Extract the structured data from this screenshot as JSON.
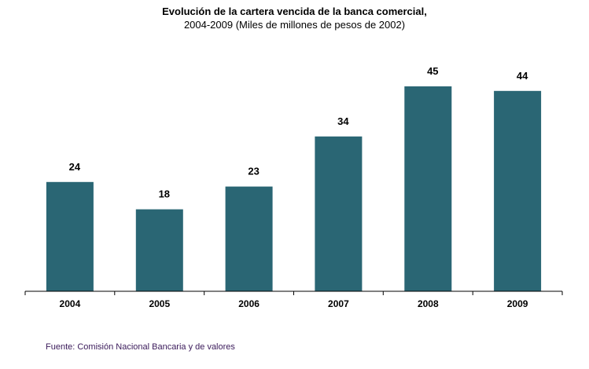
{
  "chart_data": {
    "type": "bar",
    "title": "Evolución de la cartera vencida de la banca comercial,",
    "subtitle": "2004-2009 (Miles de millones de pesos de 2002)",
    "xlabel": "",
    "ylabel": "",
    "categories": [
      "2004",
      "2005",
      "2006",
      "2007",
      "2008",
      "2009"
    ],
    "values": [
      24,
      18,
      23,
      34,
      45,
      44
    ],
    "data_labels": [
      "24",
      "18",
      "23",
      "34",
      "45",
      "44"
    ],
    "ylim": [
      0,
      45
    ],
    "grid": false,
    "legend": "none",
    "bar_color": "#2a6674",
    "axis_color": "#000000"
  },
  "footer": {
    "source": "Fuente: Comisión Nacional Bancaria y de valores"
  }
}
